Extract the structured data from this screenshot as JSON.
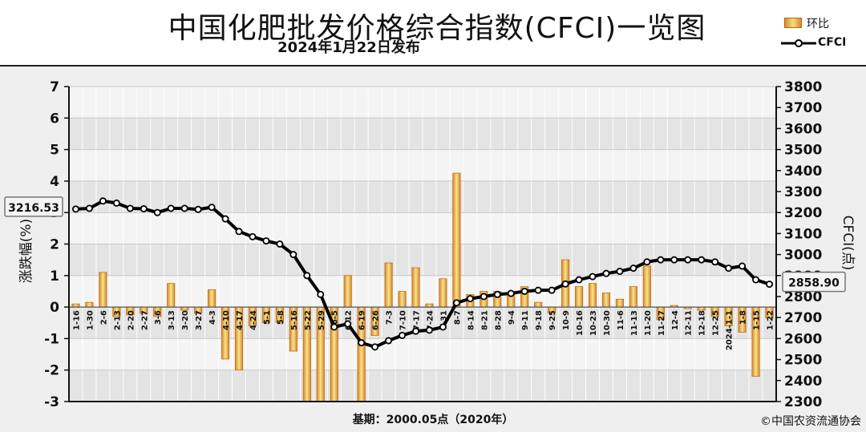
{
  "title": "中国化肥批发价格综合指数(CFCI)一览图",
  "subtitle": "2024年1月22日发布",
  "legend": {
    "bar": "环比",
    "line": "CFCI"
  },
  "footer": {
    "base": "基期：2000.05点（2020年）",
    "copyright": "©中国农资流通协会"
  },
  "chart_data": {
    "type": "bar",
    "left_axis": {
      "label": "涨跌幅(%)",
      "ylim": [
        -3,
        7
      ],
      "ticks": [
        -3,
        -2,
        -1,
        0,
        1,
        2,
        3,
        4,
        5,
        6,
        7
      ]
    },
    "right_axis": {
      "label": "CFCI(点)",
      "ylim": [
        2300,
        3800
      ],
      "ticks": [
        2300,
        2400,
        2500,
        2600,
        2700,
        2800,
        2900,
        3000,
        3100,
        3200,
        3300,
        3400,
        3500,
        3600,
        3700,
        3800
      ]
    },
    "callouts": {
      "first": "3216.53",
      "last": "2858.90"
    },
    "categories": [
      "1-16",
      "1-30",
      "2-6",
      "2-13",
      "2-20",
      "2-27",
      "3-6",
      "3-13",
      "3-20",
      "3-27",
      "4-3",
      "4-10",
      "4-17",
      "4-24",
      "5-1",
      "5-8",
      "5-16",
      "5-22",
      "5-29",
      "6-5",
      "6-12",
      "6-19",
      "6-26",
      "7-3",
      "7-10",
      "7-17",
      "7-24",
      "7-31",
      "8-7",
      "8-14",
      "8-21",
      "8-28",
      "9-4",
      "9-11",
      "9-18",
      "9-25",
      "10-9",
      "10-16",
      "10-23",
      "10-30",
      "11-6",
      "11-13",
      "11-20",
      "11-27",
      "12-4",
      "12-11",
      "12-18",
      "12-25",
      "2024-1-1",
      "1-8",
      "1-15",
      "1-22"
    ],
    "series": [
      {
        "name": "环比",
        "axis": "left",
        "type": "bar",
        "values": [
          0.1,
          0.15,
          1.1,
          -0.3,
          -0.25,
          -0.2,
          -0.3,
          0.75,
          -0.1,
          -0.2,
          0.55,
          -1.65,
          -2.0,
          -0.6,
          -0.5,
          -0.5,
          -1.4,
          -3.0,
          -3.0,
          -3.0,
          1.0,
          -3.0,
          -0.9,
          1.4,
          0.5,
          1.25,
          0.1,
          0.9,
          4.25,
          0.4,
          0.5,
          0.5,
          0.45,
          0.65,
          0.15,
          -0.2,
          1.5,
          0.65,
          0.75,
          0.45,
          0.25,
          0.65,
          1.3,
          -0.4,
          0.05,
          -0.05,
          -0.1,
          -0.3,
          -0.6,
          -0.8,
          -2.2,
          -0.35
        ]
      },
      {
        "name": "CFCI",
        "axis": "right",
        "type": "line",
        "values": [
          3216.53,
          3220,
          3255,
          3245,
          3220,
          3218,
          3200,
          3220,
          3220,
          3215,
          3225,
          3170,
          3110,
          3085,
          3065,
          3050,
          3000,
          2900,
          2810,
          2655,
          2670,
          2580,
          2560,
          2590,
          2615,
          2635,
          2640,
          2655,
          2770,
          2790,
          2800,
          2810,
          2815,
          2825,
          2830,
          2830,
          2860,
          2880,
          2895,
          2910,
          2920,
          2935,
          2965,
          2975,
          2975,
          2975,
          2975,
          2965,
          2935,
          2945,
          2880,
          2858.9
        ]
      }
    ]
  }
}
